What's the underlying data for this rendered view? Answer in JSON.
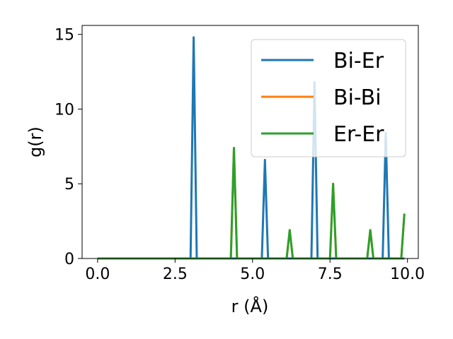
{
  "chart_data": {
    "type": "line",
    "title": "",
    "xlabel": "r (Å)",
    "ylabel": "g(r)",
    "xlim": [
      -0.5,
      10.35
    ],
    "ylim": [
      0,
      15.6
    ],
    "x_ticks": [
      "0.0",
      "2.5",
      "5.0",
      "7.5",
      "10.0"
    ],
    "y_ticks": [
      "0",
      "5",
      "10",
      "15"
    ],
    "grid": false,
    "legend_position": "top-right",
    "series": [
      {
        "name": "Bi-Er",
        "color": "#1f77b4",
        "points": [
          [
            0,
            0
          ],
          [
            3.0,
            0
          ],
          [
            3.1,
            14.8
          ],
          [
            3.2,
            0
          ],
          [
            5.3,
            0
          ],
          [
            5.4,
            6.6
          ],
          [
            5.5,
            0
          ],
          [
            6.9,
            0
          ],
          [
            7.0,
            11.8
          ],
          [
            7.1,
            0
          ],
          [
            9.2,
            0
          ],
          [
            9.3,
            8.4
          ],
          [
            9.4,
            0
          ],
          [
            9.9,
            0
          ]
        ]
      },
      {
        "name": "Bi-Bi",
        "color": "#ff7f0e",
        "points": [
          [
            0,
            0
          ],
          [
            4.3,
            0
          ],
          [
            4.4,
            7.4
          ],
          [
            4.5,
            0
          ],
          [
            6.1,
            0
          ],
          [
            6.2,
            1.9
          ],
          [
            6.3,
            0
          ],
          [
            7.5,
            0
          ],
          [
            7.6,
            5.0
          ],
          [
            7.7,
            0
          ],
          [
            8.7,
            0
          ],
          [
            8.8,
            1.9
          ],
          [
            8.9,
            0
          ],
          [
            9.8,
            0
          ],
          [
            9.9,
            3.0
          ]
        ]
      },
      {
        "name": "Er-Er",
        "color": "#2ca02c",
        "points": [
          [
            0,
            0
          ],
          [
            4.3,
            0
          ],
          [
            4.4,
            7.4
          ],
          [
            4.5,
            0
          ],
          [
            6.1,
            0
          ],
          [
            6.2,
            1.9
          ],
          [
            6.3,
            0
          ],
          [
            7.5,
            0
          ],
          [
            7.6,
            5.0
          ],
          [
            7.7,
            0
          ],
          [
            8.7,
            0
          ],
          [
            8.8,
            1.9
          ],
          [
            8.9,
            0
          ],
          [
            9.8,
            0
          ],
          [
            9.9,
            3.0
          ]
        ]
      }
    ]
  }
}
